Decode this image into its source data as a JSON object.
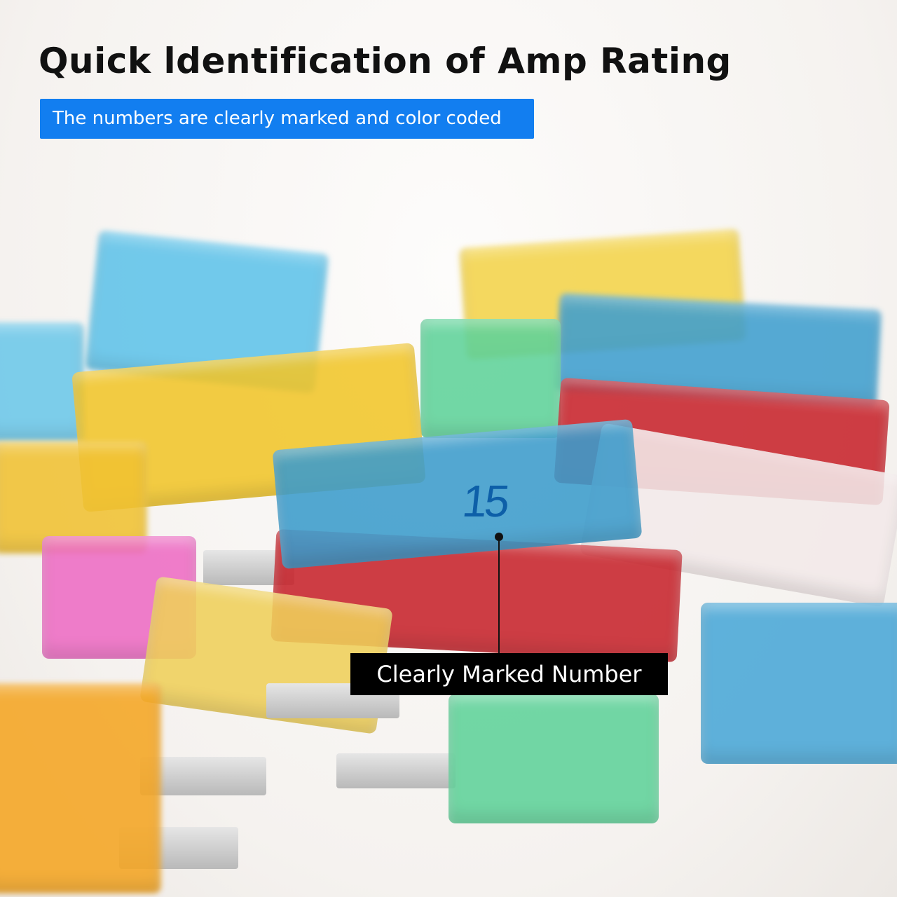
{
  "title": "Quick ldentification of Amp Rating",
  "subtitle": "The numbers are clearly marked and color coded",
  "callout": "Clearly Marked Number",
  "fuse_number": "15",
  "colors": {
    "accent": "#127ef0",
    "callout_bg": "#000000",
    "blue_fuse": "#4aa8d8",
    "red_fuse": "#c8242c",
    "yellow_fuse": "#f2c62a",
    "green_fuse": "#5fd39a",
    "pink_fuse": "#ee6cc4",
    "orange_fuse": "#f5a623",
    "clear_fuse": "#f3eaea"
  }
}
